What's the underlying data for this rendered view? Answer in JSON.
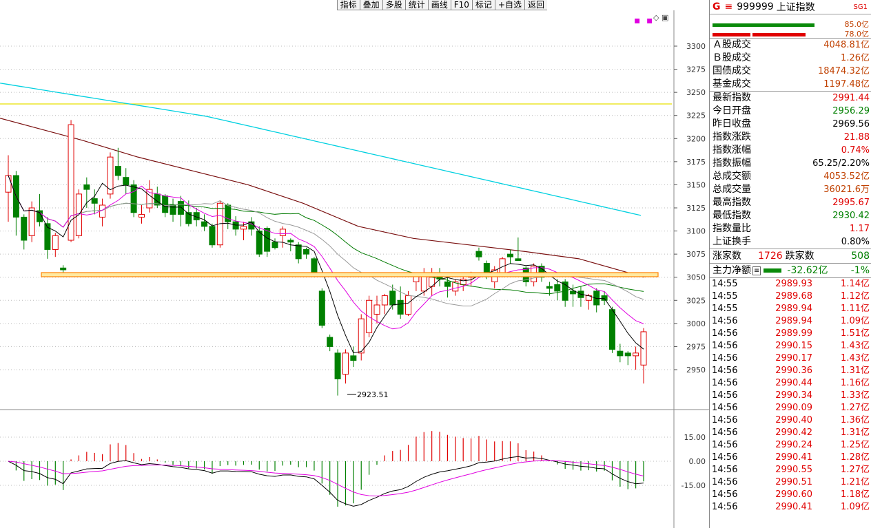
{
  "toolbar": [
    "指标",
    "叠加",
    "多股",
    "统计",
    "画线",
    "F10",
    "标记",
    "+自选",
    "返回"
  ],
  "price_axis": {
    "min": 2900,
    "max": 3325,
    "ticks": [
      3300,
      3275,
      3250,
      3225,
      3200,
      3175,
      3150,
      3125,
      3100,
      3075,
      3050,
      3025,
      3000,
      2975,
      2950
    ]
  },
  "low_label": "2923.51",
  "macd_axis": {
    "ticks": [
      "15.00",
      "0.00",
      "-15.00"
    ]
  },
  "colors": {
    "up": "#e00000",
    "down": "#008000",
    "ma5": "#000000",
    "ma10": "#e000e0",
    "ma20": "#999999",
    "ma30": "#007a00",
    "ma60": "#7a1010",
    "ma120": "#00d0e0",
    "yellow_line": "#e8e000",
    "support": "#ff8000"
  },
  "chart_data": {
    "type": "candlestick",
    "title": "",
    "candles": [
      [
        3142,
        3182,
        3110,
        3160
      ],
      [
        3160,
        3165,
        3095,
        3115
      ],
      [
        3115,
        3118,
        3080,
        3090
      ],
      [
        3095,
        3132,
        3088,
        3125
      ],
      [
        3122,
        3140,
        3105,
        3110
      ],
      [
        3108,
        3115,
        3070,
        3080
      ],
      [
        3080,
        3098,
        3072,
        3095
      ],
      [
        3060,
        3063,
        3052,
        3058
      ],
      [
        3090,
        3220,
        3088,
        3215
      ],
      [
        3095,
        3145,
        3092,
        3140
      ],
      [
        3150,
        3158,
        3125,
        3145
      ],
      [
        3135,
        3145,
        3118,
        3130
      ],
      [
        3115,
        3135,
        3105,
        3128
      ],
      [
        3140,
        3185,
        3135,
        3180
      ],
      [
        3170,
        3190,
        3155,
        3160
      ],
      [
        3158,
        3168,
        3140,
        3150
      ],
      [
        3150,
        3155,
        3115,
        3120
      ],
      [
        3115,
        3128,
        3108,
        3118
      ],
      [
        3125,
        3155,
        3120,
        3145
      ],
      [
        3140,
        3148,
        3125,
        3128
      ],
      [
        3138,
        3140,
        3115,
        3120
      ],
      [
        3128,
        3135,
        3110,
        3118
      ],
      [
        3132,
        3138,
        3105,
        3118
      ],
      [
        3120,
        3133,
        3105,
        3108
      ],
      [
        3120,
        3125,
        3105,
        3112
      ],
      [
        3110,
        3118,
        3100,
        3105
      ],
      [
        3105,
        3108,
        3082,
        3085
      ],
      [
        3085,
        3133,
        3082,
        3130
      ],
      [
        3128,
        3130,
        3102,
        3110
      ],
      [
        3110,
        3116,
        3095,
        3102
      ],
      [
        3102,
        3110,
        3090,
        3105
      ],
      [
        3110,
        3115,
        3095,
        3102
      ],
      [
        3100,
        3105,
        3072,
        3075
      ],
      [
        3103,
        3105,
        3072,
        3078
      ],
      [
        3088,
        3092,
        3080,
        3082
      ],
      [
        3095,
        3105,
        3082,
        3102
      ],
      [
        3090,
        3092,
        3078,
        3088
      ],
      [
        3085,
        3088,
        3065,
        3070
      ],
      [
        3080,
        3082,
        3070,
        3075
      ],
      [
        3070,
        3072,
        3050,
        3055
      ],
      [
        3035,
        3038,
        2995,
        2998
      ],
      [
        2985,
        2988,
        2970,
        2975
      ],
      [
        2968,
        2972,
        2922,
        2940
      ],
      [
        2945,
        2972,
        2935,
        2968
      ],
      [
        2965,
        2975,
        2953,
        2960
      ],
      [
        2968,
        3010,
        2960,
        3005
      ],
      [
        2990,
        3030,
        2985,
        3025
      ],
      [
        3010,
        3030,
        3000,
        3020
      ],
      [
        3020,
        3032,
        3010,
        3030
      ],
      [
        3035,
        3042,
        3015,
        3020
      ],
      [
        3025,
        3040,
        3005,
        3010
      ],
      [
        3010,
        3035,
        3008,
        3030
      ],
      [
        3045,
        3055,
        3035,
        3055
      ],
      [
        3035,
        3060,
        3030,
        3055
      ],
      [
        3040,
        3060,
        3030,
        3050
      ],
      [
        3055,
        3060,
        3040,
        3048
      ],
      [
        3045,
        3050,
        3028,
        3040
      ],
      [
        3035,
        3048,
        3030,
        3045
      ],
      [
        3042,
        3050,
        3035,
        3048
      ],
      [
        3050,
        3056,
        3040,
        3055
      ],
      [
        3078,
        3082,
        3068,
        3072
      ],
      [
        3065,
        3068,
        3048,
        3052
      ],
      [
        3045,
        3062,
        3038,
        3058
      ],
      [
        3055,
        3072,
        3050,
        3070
      ],
      [
        3075,
        3080,
        3065,
        3072
      ],
      [
        3070,
        3093,
        3068,
        3068
      ],
      [
        3060,
        3062,
        3040,
        3045
      ],
      [
        3045,
        3065,
        3040,
        3062
      ],
      [
        3062,
        3065,
        3045,
        3050
      ],
      [
        3040,
        3045,
        3030,
        3038
      ],
      [
        3042,
        3048,
        3025,
        3035
      ],
      [
        3045,
        3048,
        3018,
        3025
      ],
      [
        3035,
        3042,
        3018,
        3032
      ],
      [
        3035,
        3040,
        3018,
        3028
      ],
      [
        3025,
        3032,
        3015,
        3030
      ],
      [
        3035,
        3038,
        3012,
        3020
      ],
      [
        3030,
        3035,
        3020,
        3025
      ],
      [
        3015,
        3018,
        2968,
        2972
      ],
      [
        2970,
        2978,
        2958,
        2965
      ],
      [
        2968,
        2970,
        2955,
        2965
      ],
      [
        2965,
        2975,
        2950,
        2968
      ],
      [
        2955,
        2995,
        2935,
        2991
      ]
    ],
    "ma": {
      "ma5": [
        3108,
        3100,
        3095,
        3096,
        3100,
        3100,
        3105,
        3112,
        3120,
        3128,
        3140,
        3150,
        3152,
        3155,
        3152,
        3145,
        3138,
        3135,
        3130,
        3128,
        3122,
        3120,
        3118,
        3115,
        3110,
        3105,
        3100,
        3095,
        3085,
        3070,
        3045,
        3020,
        2990,
        2965,
        2955,
        2960,
        2970,
        2985,
        3000,
        3010,
        3020,
        3025,
        3030,
        3035,
        3040,
        3045,
        3050,
        3052,
        3055,
        3060,
        3062,
        3060,
        3055,
        3050,
        3045,
        3040,
        3038,
        3036,
        3035,
        3033,
        3030,
        3020,
        3005,
        2990,
        2978,
        2972
      ],
      "ma20": [
        3215,
        3210,
        3205,
        3195,
        3185,
        3170,
        3155,
        3140,
        3128,
        3120,
        3115,
        3112,
        3110,
        3108,
        3108,
        3107,
        3105,
        3104,
        3103,
        3103,
        3102,
        3101,
        3100,
        3098,
        3090,
        3078,
        3065,
        3055,
        3045,
        3038,
        3032,
        3028,
        3025,
        3022,
        3020,
        3020,
        3022,
        3025,
        3030,
        3035,
        3040,
        3044,
        3046,
        3048,
        3050,
        3050,
        3048,
        3045,
        3043,
        3040,
        3038,
        3035,
        3030
      ],
      "ma30": [
        3220,
        3215,
        3208,
        3200,
        3195,
        3190,
        3185,
        3180,
        3175,
        3170,
        3162,
        3155,
        3148,
        3140,
        3132,
        3128,
        3124,
        3120,
        3118,
        3117,
        3116,
        3114,
        3112,
        3108,
        3100,
        3090,
        3080,
        3072,
        3064,
        3058,
        3055,
        3053,
        3052,
        3050,
        3048,
        3046,
        3045,
        3044,
        3043,
        3043,
        3042,
        3042,
        3040,
        3038,
        3037,
        3035,
        3033,
        3030,
        3028
      ]
    }
  },
  "panel": {
    "code": "999999",
    "name": "上证指数",
    "sg": "SG1",
    "bar_top_value": "85.0亿",
    "bar_bottom_value": "78.0亿",
    "volume_rows": [
      {
        "k": "Ａ股成交",
        "v": "4048.81亿"
      },
      {
        "k": "Ｂ股成交",
        "v": "1.26亿"
      },
      {
        "k": "国债成交",
        "v": "18474.32亿"
      },
      {
        "k": "基金成交",
        "v": "1197.48亿"
      }
    ],
    "index_rows": [
      {
        "k": "最新指数",
        "v": "2991.44",
        "c": "red"
      },
      {
        "k": "今日开盘",
        "v": "2956.29",
        "c": "green"
      },
      {
        "k": "昨日收盘",
        "v": "2969.56",
        "c": "black"
      },
      {
        "k": "指数涨跌",
        "v": "21.88",
        "c": "red"
      },
      {
        "k": "指数涨幅",
        "v": "0.74%",
        "c": "red"
      },
      {
        "k": "指数振幅",
        "v": "65.25/2.20%",
        "c": "black"
      },
      {
        "k": "总成交额",
        "v": "4053.52亿",
        "c": "orange"
      },
      {
        "k": "总成交量",
        "v": "36021.6万",
        "c": "orange"
      },
      {
        "k": "最高指数",
        "v": "2995.67",
        "c": "red"
      },
      {
        "k": "最低指数",
        "v": "2930.42",
        "c": "green"
      },
      {
        "k": "指数量比",
        "v": "1.17",
        "c": "red"
      },
      {
        "k": "上证换手",
        "v": "0.80%",
        "c": "black"
      }
    ],
    "zhang_label": "涨家数",
    "zhang_value": "1726",
    "die_label": "跌家数",
    "die_value": "508",
    "mf_label": "主力净额",
    "mf_value": "-32.62亿",
    "mf_pct": "-1%",
    "ticks": [
      {
        "t": "14:55",
        "p": "2989.93",
        "a": "1.14亿"
      },
      {
        "t": "14:55",
        "p": "2989.68",
        "a": "1.12亿"
      },
      {
        "t": "14:55",
        "p": "2989.94",
        "a": "1.11亿"
      },
      {
        "t": "14:56",
        "p": "2989.94",
        "a": "1.09亿"
      },
      {
        "t": "14:56",
        "p": "2989.99",
        "a": "1.51亿"
      },
      {
        "t": "14:56",
        "p": "2990.15",
        "a": "1.43亿"
      },
      {
        "t": "14:56",
        "p": "2990.17",
        "a": "1.43亿"
      },
      {
        "t": "14:56",
        "p": "2990.36",
        "a": "1.31亿"
      },
      {
        "t": "14:56",
        "p": "2990.44",
        "a": "1.16亿"
      },
      {
        "t": "14:56",
        "p": "2990.34",
        "a": "1.33亿"
      },
      {
        "t": "14:56",
        "p": "2990.09",
        "a": "1.27亿"
      },
      {
        "t": "14:56",
        "p": "2990.40",
        "a": "1.36亿"
      },
      {
        "t": "14:56",
        "p": "2990.42",
        "a": "1.31亿"
      },
      {
        "t": "14:56",
        "p": "2990.24",
        "a": "1.25亿"
      },
      {
        "t": "14:56",
        "p": "2990.41",
        "a": "1.28亿"
      },
      {
        "t": "14:56",
        "p": "2990.55",
        "a": "1.27亿"
      },
      {
        "t": "14:56",
        "p": "2990.51",
        "a": "1.21亿"
      },
      {
        "t": "14:56",
        "p": "2990.60",
        "a": "1.18亿"
      },
      {
        "t": "14:56",
        "p": "2990.41",
        "a": "1.09亿"
      }
    ]
  }
}
